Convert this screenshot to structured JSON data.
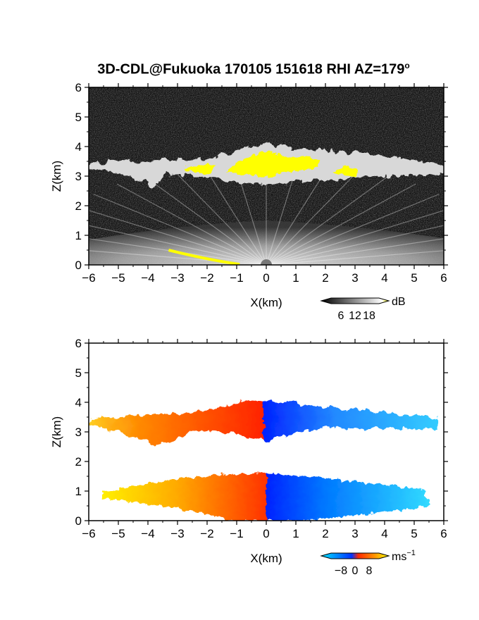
{
  "title": {
    "text": "3D-CDL@Fukuoka 170105 151618 RHI AZ=179",
    "degree_mark": "o"
  },
  "chart_data": [
    {
      "id": "snr_panel",
      "type": "heatmap",
      "title": "",
      "xlabel": "X(km)",
      "ylabel": "Z(km)",
      "xlim": [
        -6,
        6
      ],
      "ylim": [
        0,
        6
      ],
      "x_ticks": [
        "-6",
        "-5",
        "-4",
        "-3",
        "-2",
        "-1",
        "0",
        "1",
        "2",
        "3",
        "4",
        "5",
        "6"
      ],
      "y_ticks": [
        "0",
        "1",
        "2",
        "3",
        "4",
        "5",
        "6"
      ],
      "colorbar": {
        "unit": "dB",
        "tick_labels": [
          "6",
          "12",
          "18"
        ],
        "ticks": [
          6,
          12,
          18
        ],
        "colors": [
          "#000000",
          "#ffffff",
          "#ffff00"
        ]
      },
      "cloud_layer_km": {
        "base": 2.7,
        "top": 4.1
      },
      "boundary_layer_top_km": 1.5,
      "saturated_color": "#ffff00"
    },
    {
      "id": "velocity_panel",
      "type": "heatmap",
      "title": "",
      "xlabel": "X(km)",
      "ylabel": "Z(km)",
      "xlim": [
        -6,
        6
      ],
      "ylim": [
        0,
        6
      ],
      "x_ticks": [
        "-6",
        "-5",
        "-4",
        "-3",
        "-2",
        "-1",
        "0",
        "1",
        "2",
        "3",
        "4",
        "5",
        "6"
      ],
      "y_ticks": [
        "0",
        "1",
        "2",
        "3",
        "4",
        "5",
        "6"
      ],
      "colorbar": {
        "unit": "ms",
        "unit_exponent": "−1",
        "tick_labels": [
          "−8",
          "0",
          "8"
        ],
        "ticks": [
          -8,
          0,
          8
        ],
        "colors": [
          "#00e5ff",
          "#0033ff",
          "#ff2a00",
          "#ffff00"
        ]
      },
      "cloud_layer_km": {
        "base": 2.6,
        "top": 4.1
      },
      "boundary_layer_top_km": 1.6,
      "sign_change_x_km": 0
    }
  ]
}
